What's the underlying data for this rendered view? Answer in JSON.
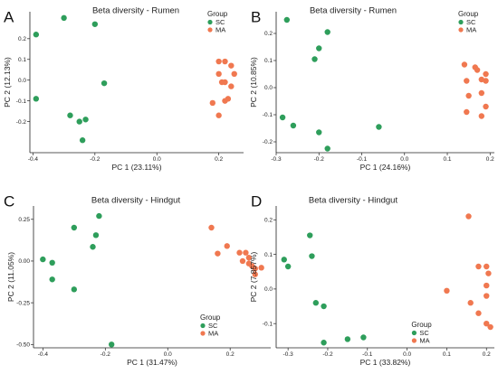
{
  "colors": {
    "SC": "#2e9e5b",
    "MA": "#f07850"
  },
  "chart_data": [
    {
      "panel": "A",
      "type": "scatter",
      "title": "Beta diversity - Rumen",
      "xlabel": "PC 1 (23.11%)",
      "ylabel": "PC 2 (12.13%)",
      "xlim": [
        -0.41,
        0.28
      ],
      "ylim": [
        -0.35,
        0.33
      ],
      "xticks": [
        -0.4,
        -0.2,
        0.0,
        0.2
      ],
      "xtick_labels": [
        "-0.4",
        "-0.2",
        "0.0",
        "0.2"
      ],
      "yticks": [
        -0.2,
        -0.1,
        0.0,
        0.1,
        0.2
      ],
      "ytick_labels": [
        "-0.2",
        "-0.1",
        "0.0",
        "0.1",
        "0.2"
      ],
      "legend": {
        "title": "Group",
        "position": "top-right",
        "entries": [
          "SC",
          "MA"
        ]
      },
      "series": [
        {
          "name": "SC",
          "points": [
            [
              -0.3,
              0.3
            ],
            [
              -0.2,
              0.27
            ],
            [
              -0.39,
              0.22
            ],
            [
              -0.17,
              -0.015
            ],
            [
              -0.39,
              -0.09
            ],
            [
              -0.28,
              -0.17
            ],
            [
              -0.25,
              -0.2
            ],
            [
              -0.23,
              -0.19
            ],
            [
              -0.24,
              -0.29
            ]
          ]
        },
        {
          "name": "MA",
          "points": [
            [
              0.2,
              0.09
            ],
            [
              0.22,
              0.09
            ],
            [
              0.24,
              0.07
            ],
            [
              0.2,
              0.03
            ],
            [
              0.25,
              0.03
            ],
            [
              0.21,
              -0.01
            ],
            [
              0.22,
              -0.01
            ],
            [
              0.24,
              -0.03
            ],
            [
              0.23,
              -0.09
            ],
            [
              0.22,
              -0.1
            ],
            [
              0.18,
              -0.11
            ],
            [
              0.2,
              -0.17
            ]
          ]
        }
      ]
    },
    {
      "panel": "B",
      "type": "scatter",
      "title": "Beta diversity - Rumen",
      "xlabel": "PC 1 (24.16%)",
      "ylabel": "PC 2 (10.85%)",
      "xlim": [
        -0.3,
        0.21
      ],
      "ylim": [
        -0.24,
        0.28
      ],
      "xticks": [
        -0.3,
        -0.2,
        -0.1,
        0.0,
        0.1,
        0.2
      ],
      "xtick_labels": [
        "-0.3",
        "-0.2",
        "-0.1",
        "0.0",
        "0.1",
        "0.2"
      ],
      "yticks": [
        -0.2,
        -0.1,
        0.0,
        0.1,
        0.2
      ],
      "ytick_labels": [
        "-0.2",
        "-0.1",
        "0.0",
        "0.1",
        "0.2"
      ],
      "legend": {
        "title": "Group",
        "position": "top-right",
        "entries": [
          "SC",
          "MA"
        ]
      },
      "series": [
        {
          "name": "SC",
          "points": [
            [
              -0.275,
              0.25
            ],
            [
              -0.18,
              0.205
            ],
            [
              -0.2,
              0.145
            ],
            [
              -0.21,
              0.105
            ],
            [
              -0.285,
              -0.11
            ],
            [
              -0.26,
              -0.14
            ],
            [
              -0.2,
              -0.165
            ],
            [
              -0.06,
              -0.145
            ],
            [
              -0.18,
              -0.225
            ]
          ]
        },
        {
          "name": "MA",
          "points": [
            [
              0.14,
              0.085
            ],
            [
              0.165,
              0.075
            ],
            [
              0.17,
              0.065
            ],
            [
              0.18,
              0.03
            ],
            [
              0.19,
              0.05
            ],
            [
              0.19,
              0.025
            ],
            [
              0.145,
              0.025
            ],
            [
              0.18,
              -0.02
            ],
            [
              0.15,
              -0.03
            ],
            [
              0.19,
              -0.07
            ],
            [
              0.145,
              -0.09
            ],
            [
              0.18,
              -0.105
            ]
          ]
        }
      ]
    },
    {
      "panel": "C",
      "type": "scatter",
      "title": "Beta diversity - Hindgut",
      "xlabel": "PC 1 (31.47%)",
      "ylabel": "PC 2 (11.05%)",
      "xlim": [
        -0.43,
        0.33
      ],
      "ylim": [
        -0.52,
        0.33
      ],
      "xticks": [
        -0.4,
        -0.2,
        0.0,
        0.2
      ],
      "xtick_labels": [
        "-0.4",
        "-0.2",
        "0.0",
        "0.2"
      ],
      "yticks": [
        -0.5,
        -0.25,
        0.0,
        0.25
      ],
      "ytick_labels": [
        "-0.50",
        "-0.25",
        "0.00",
        "0.25"
      ],
      "legend": {
        "title": "Group",
        "position": "bottom-right",
        "entries": [
          "SC",
          "MA"
        ]
      },
      "series": [
        {
          "name": "SC",
          "points": [
            [
              -0.22,
              0.27
            ],
            [
              -0.3,
              0.2
            ],
            [
              -0.23,
              0.155
            ],
            [
              -0.24,
              0.085
            ],
            [
              -0.4,
              0.01
            ],
            [
              -0.37,
              -0.01
            ],
            [
              -0.37,
              -0.11
            ],
            [
              -0.3,
              -0.17
            ],
            [
              -0.18,
              -0.5
            ]
          ]
        },
        {
          "name": "MA",
          "points": [
            [
              0.14,
              0.2
            ],
            [
              0.19,
              0.09
            ],
            [
              0.23,
              0.05
            ],
            [
              0.25,
              0.05
            ],
            [
              0.16,
              0.045
            ],
            [
              0.26,
              0.02
            ],
            [
              0.24,
              0.0
            ],
            [
              0.26,
              -0.015
            ],
            [
              0.27,
              -0.03
            ],
            [
              0.3,
              -0.04
            ],
            [
              0.28,
              -0.045
            ],
            [
              0.28,
              -0.08
            ]
          ]
        }
      ]
    },
    {
      "panel": "D",
      "type": "scatter",
      "title": "Beta diversity - Hindgut",
      "xlabel": "PC 1 (33.82%)",
      "ylabel": "PC 2 (7.857%)",
      "xlim": [
        -0.33,
        0.22
      ],
      "ylim": [
        -0.17,
        0.24
      ],
      "xticks": [
        -0.3,
        -0.2,
        -0.1,
        0.0,
        0.1,
        0.2
      ],
      "xtick_labels": [
        "-0.3",
        "-0.2",
        "-0.1",
        "0.0",
        "0.1",
        "0.2"
      ],
      "yticks": [
        -0.1,
        0.0,
        0.1,
        0.2
      ],
      "ytick_labels": [
        "-0.1",
        "0.0",
        "0.1",
        "0.2"
      ],
      "legend": {
        "title": "Group",
        "position": "bottom-left",
        "entries": [
          "SC",
          "MA"
        ]
      },
      "series": [
        {
          "name": "SC",
          "points": [
            [
              -0.245,
              0.155
            ],
            [
              -0.24,
              0.095
            ],
            [
              -0.31,
              0.085
            ],
            [
              -0.3,
              0.065
            ],
            [
              -0.23,
              -0.04
            ],
            [
              -0.21,
              -0.05
            ],
            [
              -0.15,
              -0.145
            ],
            [
              -0.11,
              -0.14
            ],
            [
              -0.21,
              -0.155
            ]
          ]
        },
        {
          "name": "MA",
          "points": [
            [
              0.155,
              0.21
            ],
            [
              0.18,
              0.065
            ],
            [
              0.2,
              0.065
            ],
            [
              0.205,
              0.045
            ],
            [
              0.2,
              0.01
            ],
            [
              0.1,
              -0.005
            ],
            [
              0.2,
              -0.02
            ],
            [
              0.16,
              -0.04
            ],
            [
              0.18,
              -0.07
            ],
            [
              0.2,
              -0.1
            ],
            [
              0.21,
              -0.11
            ]
          ]
        }
      ]
    }
  ]
}
